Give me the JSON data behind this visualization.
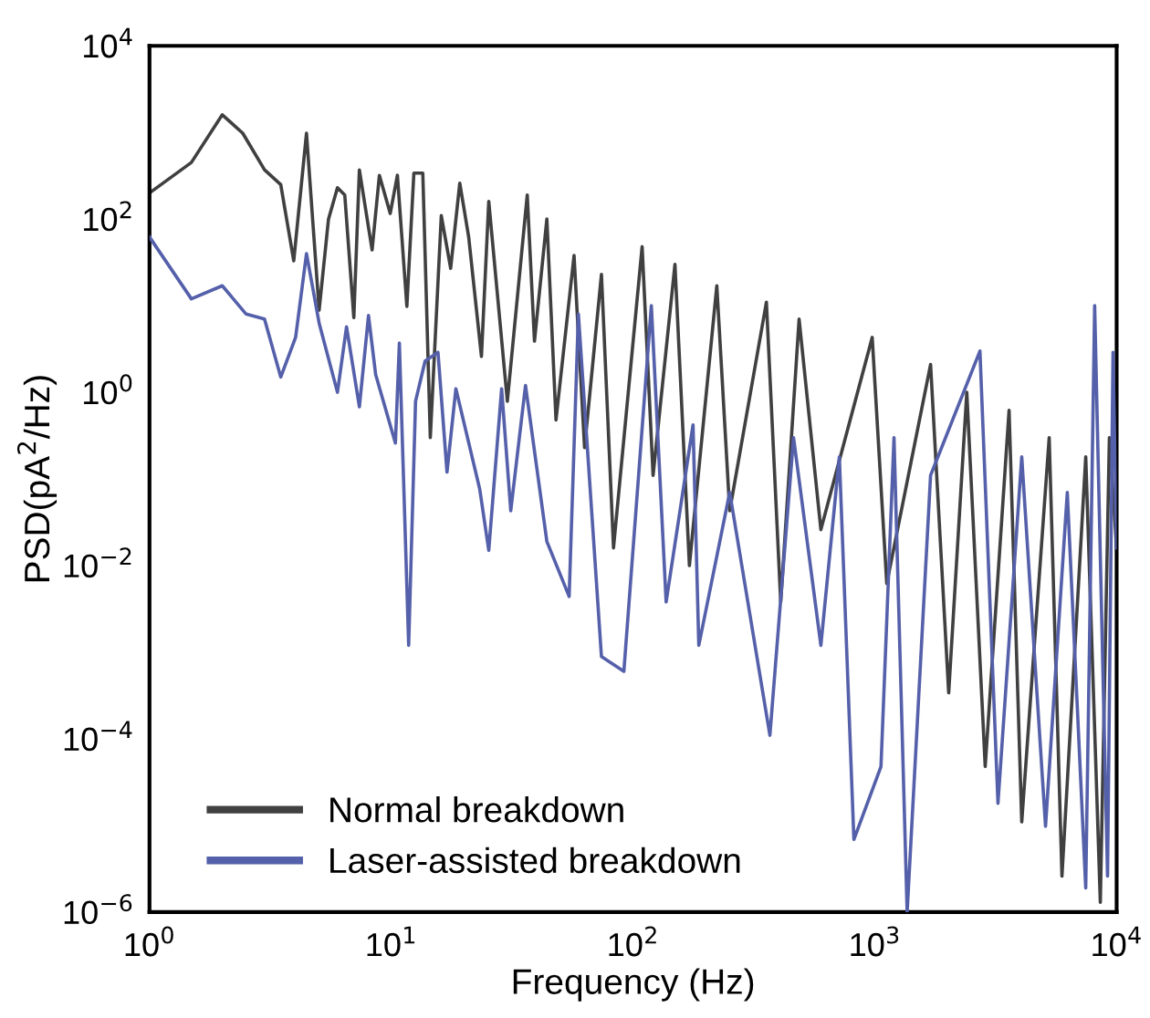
{
  "chart_data": {
    "type": "line",
    "xlabel": "Frequency (Hz)",
    "ylabel": "PSD(pA$^{2}$/Hz)",
    "log": "xy",
    "grid": false,
    "legend": "bottom left",
    "line_style": "solid",
    "marker": "none",
    "xlim": [
      1,
      10000
    ],
    "xticks": [
      {
        "value": 1,
        "label": "10$^{0}$"
      },
      {
        "value": 10,
        "label": "10$^{1}$"
      },
      {
        "value": 100,
        "label": "10$^{2}$"
      },
      {
        "value": 1000,
        "label": "10$^{3}$"
      },
      {
        "value": 10000,
        "label": "10$^{4}$"
      }
    ],
    "ylim": [
      1e-06,
      10000
    ],
    "yticks": [
      {
        "value": 1e-06,
        "label": "10$^{−6}$"
      },
      {
        "value": 0.0001,
        "label": "10$^{−4}$"
      },
      {
        "value": 0.01,
        "label": "10$^{−2}$"
      },
      {
        "value": 1,
        "label": "10$^{0}$"
      },
      {
        "value": 100,
        "label": "10$^{2}$"
      },
      {
        "value": 10000,
        "label": "10$^{4}$"
      }
    ],
    "series": [
      {
        "name": "Normal breakdown",
        "color": "#404040",
        "x": [
          1.0,
          1.49,
          2.0,
          2.43,
          2.99,
          3.49,
          3.95,
          4.46,
          5.03,
          5.5,
          5.99,
          6.42,
          7.0,
          7.38,
          8.33,
          8.93,
          9.9,
          10.6,
          11.6,
          12.4,
          13.5,
          14.5,
          16.1,
          17.6,
          19.2,
          20.9,
          23.6,
          25.3,
          30.2,
          36.5,
          39.1,
          44,
          48,
          57,
          63,
          74,
          83,
          109,
          121,
          149,
          171,
          222,
          251,
          356,
          408,
          486,
          598,
          975,
          1120,
          1700,
          2020,
          2400,
          2860,
          3590,
          4050,
          5260,
          5940,
          7450,
          8560,
          9330,
          10000
        ],
        "values": [
          200,
          450,
          1600,
          980,
          370,
          250,
          33,
          980,
          8.9,
          100,
          230,
          190,
          7.3,
          370,
          44,
          320,
          116,
          320,
          9.8,
          340,
          340,
          0.3,
          110,
          27,
          260,
          62,
          2.6,
          160,
          0.79,
          190,
          3.9,
          100,
          0.48,
          38,
          0.23,
          23,
          0.016,
          48,
          0.11,
          30,
          0.01,
          17,
          0.043,
          11,
          0.0038,
          7.0,
          0.026,
          4.3,
          0.0062,
          2.1,
          0.00034,
          1.0,
          4.8e-05,
          0.62,
          1.1e-05,
          0.3,
          2.6e-06,
          0.18,
          1.3e-06,
          0.3,
          0.016
        ]
      },
      {
        "name": "Laser-assisted breakdown",
        "color": "#5560aa",
        "x": [
          1.0,
          1.49,
          2.0,
          2.51,
          2.99,
          3.49,
          4.02,
          4.46,
          5.03,
          5.99,
          6.53,
          7.38,
          8.05,
          8.62,
          10.4,
          10.8,
          11.8,
          12.6,
          13.8,
          15.6,
          17.0,
          18.5,
          23.2,
          25.3,
          28.6,
          31.2,
          35.9,
          44,
          54.4,
          59.4,
          74,
          91.6,
          119,
          137,
          177,
          187,
          251,
          368,
          461,
          598,
          713,
          819,
          1060,
          1200,
          1360,
          1700,
          2720,
          3230,
          4050,
          5080,
          6250,
          7450,
          8110,
          9170,
          9660,
          10000
        ],
        "values": [
          62,
          12,
          17,
          8.0,
          7.0,
          1.5,
          4.3,
          40,
          6.3,
          1.0,
          5.7,
          0.68,
          7.7,
          1.6,
          0.26,
          3.7,
          0.0012,
          0.79,
          2.3,
          2.9,
          0.12,
          1.1,
          0.077,
          0.015,
          1.1,
          0.043,
          1.2,
          0.019,
          0.0044,
          8.0,
          0.00089,
          0.0006,
          10,
          0.0038,
          0.42,
          0.0012,
          0.07,
          0.00011,
          0.3,
          0.0012,
          0.18,
          6.9e-06,
          4.8e-05,
          0.3,
          1e-06,
          0.11,
          3.0,
          1.8e-05,
          0.18,
          9.8e-06,
          0.07,
          1.9e-06,
          10,
          2.6e-06,
          2.9,
          0.016
        ]
      }
    ]
  }
}
